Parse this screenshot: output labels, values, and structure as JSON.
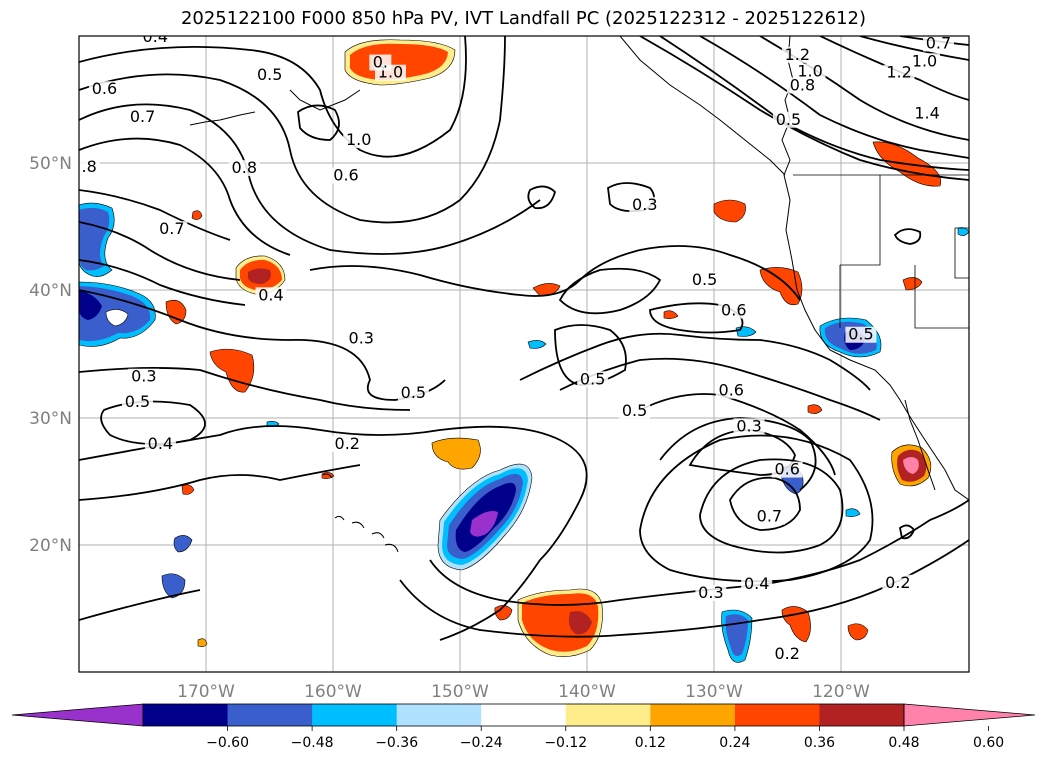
{
  "title": "2025122100 F000 850 hPa PV, IVT Landfall PC (2025122312 - 2025122612)",
  "map": {
    "lon_range": [
      -180,
      -110
    ],
    "lat_range": [
      10,
      60
    ],
    "lon_labels": [
      "170°W",
      "160°W",
      "150°W",
      "140°W",
      "130°W",
      "120°W"
    ],
    "lat_labels": [
      "50°N",
      "40°N",
      "30°N",
      "20°N"
    ],
    "contour_labels": [
      {
        "text": "0.4",
        "lon": -174,
        "lat": 59.6
      },
      {
        "text": "0.5",
        "lon": -165,
        "lat": 56.6
      },
      {
        "text": "0.6",
        "lon": -178,
        "lat": 55.5
      },
      {
        "text": "0.7",
        "lon": -175,
        "lat": 53.3
      },
      {
        "text": "1.0",
        "lon": -158,
        "lat": 51.5
      },
      {
        "text": "0.8",
        "lon": -167,
        "lat": 49.3
      },
      {
        "text": "0.6",
        "lon": -159,
        "lat": 48.7
      },
      {
        "text": "1.0",
        "lon": -155.5,
        "lat": 56.8
      },
      {
        "text": ".8",
        "lon": -179.2,
        "lat": 49.4
      },
      {
        "text": "0.7",
        "lon": -172.7,
        "lat": 44.5
      },
      {
        "text": "0.4",
        "lon": -164.9,
        "lat": 39.3
      },
      {
        "text": "0.3",
        "lon": -157.8,
        "lat": 35.9
      },
      {
        "text": "0.3",
        "lon": -174.9,
        "lat": 32.9
      },
      {
        "text": "0.5",
        "lon": -175.4,
        "lat": 30.9
      },
      {
        "text": "0.4",
        "lon": -173.6,
        "lat": 27.6
      },
      {
        "text": "0.2",
        "lon": -158.9,
        "lat": 27.6
      },
      {
        "text": "0.5",
        "lon": -153.7,
        "lat": 31.6
      },
      {
        "text": "0.3",
        "lon": -135.5,
        "lat": 46.4
      },
      {
        "text": "0.5",
        "lon": -130.8,
        "lat": 40.5
      },
      {
        "text": "0.6",
        "lon": -128.5,
        "lat": 38.1
      },
      {
        "text": "0.5",
        "lon": -139.6,
        "lat": 32.7
      },
      {
        "text": "0.5",
        "lon": -136.3,
        "lat": 30.2
      },
      {
        "text": "0.6",
        "lon": -128.7,
        "lat": 31.8
      },
      {
        "text": "0.3",
        "lon": -127.3,
        "lat": 29.0
      },
      {
        "text": "0.6",
        "lon": -124.3,
        "lat": 25.6
      },
      {
        "text": "0.7",
        "lon": -125.7,
        "lat": 21.9
      },
      {
        "text": "0.4",
        "lon": -126.7,
        "lat": 16.6
      },
      {
        "text": "0.3",
        "lon": -130.3,
        "lat": 15.9
      },
      {
        "text": "0.2",
        "lon": -124.3,
        "lat": 11.1
      },
      {
        "text": "0.2",
        "lon": -115.6,
        "lat": 16.7
      },
      {
        "text": "0.5",
        "lon": -118.5,
        "lat": 36.2
      },
      {
        "text": "1.2",
        "lon": -123.5,
        "lat": 58.2
      },
      {
        "text": "1.0",
        "lon": -122.5,
        "lat": 56.9
      },
      {
        "text": "0.8",
        "lon": -123.1,
        "lat": 55.8
      },
      {
        "text": "0.5",
        "lon": -124.2,
        "lat": 53.1
      },
      {
        "text": "0.7",
        "lon": -112.4,
        "lat": 59.1
      },
      {
        "text": "1.0",
        "lon": -113.5,
        "lat": 57.7
      },
      {
        "text": "1.2",
        "lon": -115.5,
        "lat": 56.8
      },
      {
        "text": "1.4",
        "lon": -113.3,
        "lat": 53.6
      },
      {
        "text": "0.",
        "lon": -156.3,
        "lat": 57.6
      }
    ]
  },
  "colorbar": {
    "ticks": [
      "−0.60",
      "−0.48",
      "−0.36",
      "−0.24",
      "−0.12",
      "0.12",
      "0.24",
      "0.36",
      "0.48",
      "0.60"
    ],
    "colors": [
      "#9932cc",
      "#00008b",
      "#3a5fcd",
      "#00bfff",
      "#b0e2ff",
      "#ffffff",
      "#ffec8b",
      "#ffa500",
      "#ff4500",
      "#b22222",
      "#ff82ab"
    ]
  }
}
